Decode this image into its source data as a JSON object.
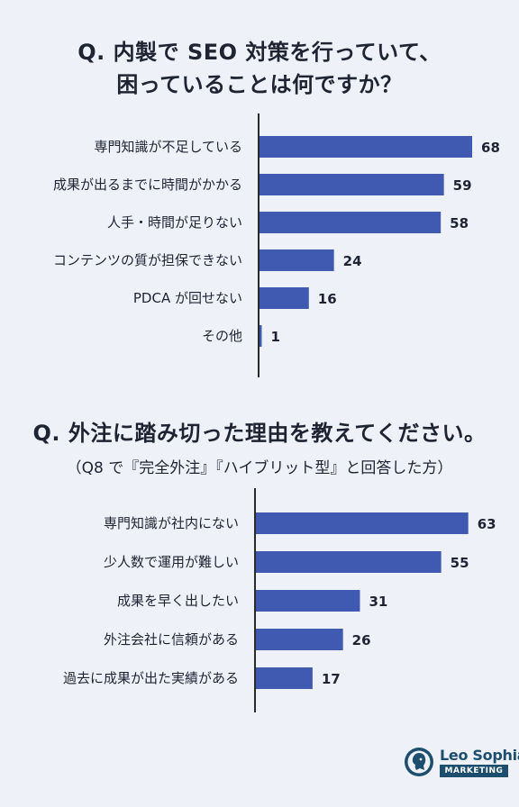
{
  "chart1": {
    "title_line1": "Q. 内製で SEO 対策を行っていて、",
    "title_line2": "困っていることは何ですか？"
  },
  "chart2": {
    "title": "Q. 外注に踏み切った理由を教えてください。",
    "subtitle": "（Q8 で『完全外注』『ハイブリット型』と回答した方）"
  },
  "logo": {
    "name": "Leo Sophia",
    "tag": "MARKETING",
    "icon": "lion-head-icon"
  },
  "colors": {
    "bar": "#3f5ab0",
    "background": "#eef1f8",
    "logo": "#1d4e6e"
  },
  "chart_data": [
    {
      "type": "bar",
      "orientation": "horizontal",
      "title": "Q. 内製で SEO 対策を行っていて、困っていることは何ですか？",
      "categories": [
        "専門知識が不足している",
        "成果が出るまでに時間がかかる",
        "人手・時間が足りない",
        "コンテンツの質が担保できない",
        "PDCA が回せない",
        "その他"
      ],
      "values": [
        68,
        59,
        58,
        24,
        16,
        1
      ],
      "xlim": [
        0,
        70
      ],
      "grid": false,
      "data_labels": true
    },
    {
      "type": "bar",
      "orientation": "horizontal",
      "title": "Q. 外注に踏み切った理由を教えてください。",
      "subtitle": "（Q8 で『完全外注』『ハイブリット型』と回答した方）",
      "categories": [
        "専門知識が社内にない",
        "少人数で運用が難しい",
        "成果を早く出したい",
        "外注会社に信頼がある",
        "過去に成果が出た実績がある"
      ],
      "values": [
        63,
        55,
        31,
        26,
        17
      ],
      "xlim": [
        0,
        70
      ],
      "grid": false,
      "data_labels": true
    }
  ]
}
